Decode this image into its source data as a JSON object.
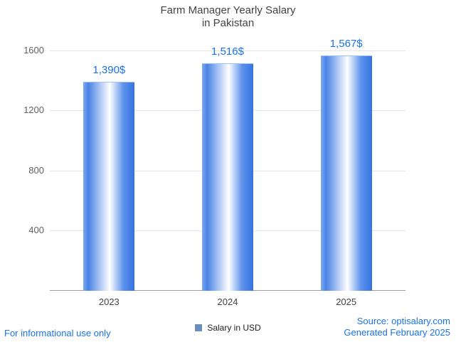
{
  "title": {
    "line1": "Farm Manager Yearly Salary",
    "line2": "in Pakistan"
  },
  "legend": {
    "label": "Salary in USD",
    "marker_color": "#6b8ebf"
  },
  "footer": {
    "left": "For informational use only",
    "source": "Source: optisalary.com",
    "generated": "Generated February 2025"
  },
  "colors": {
    "value_label": "#1a73e8",
    "bar_edge": "#3573e0",
    "gridline": "#e6e6e6",
    "axis_line": "#9e9e9e",
    "tick_label": "#616161",
    "title_text": "#424242"
  },
  "chart_data": {
    "type": "bar",
    "title": "Farm Manager Yearly Salary in Pakistan",
    "categories": [
      "2023",
      "2024",
      "2025"
    ],
    "series": [
      {
        "name": "Salary in USD",
        "values": [
          1390,
          1516,
          1567
        ],
        "value_labels": [
          "1,390$",
          "1,516$",
          "1,567$"
        ]
      }
    ],
    "xlabel": "",
    "ylabel": "",
    "ylim": [
      0,
      1600
    ],
    "yticks": [
      400,
      800,
      1200,
      1600
    ],
    "grid": true,
    "legend_position": "bottom"
  }
}
